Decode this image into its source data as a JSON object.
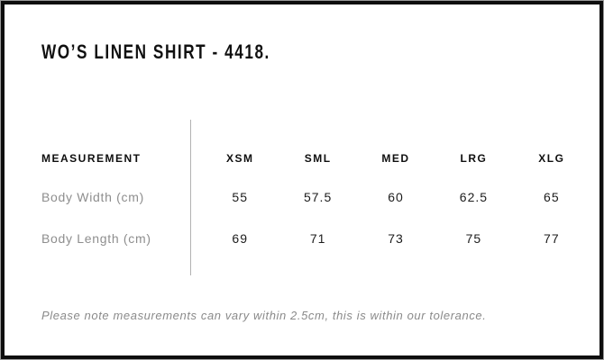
{
  "title": "WO’S LINEN SHIRT - 4418.",
  "table": {
    "header_label": "MEASUREMENT",
    "columns": [
      "XSM",
      "SML",
      "MED",
      "LRG",
      "XLG"
    ],
    "rows": [
      {
        "label": "Body Width (cm)",
        "values": [
          "55",
          "57.5",
          "60",
          "62.5",
          "65"
        ]
      },
      {
        "label": "Body Length (cm)",
        "values": [
          "69",
          "71",
          "73",
          "75",
          "77"
        ]
      }
    ]
  },
  "note": "Please note measurements can vary within 2.5cm, this is within our tolerance.",
  "colors": {
    "border": "#0e0e0e",
    "outer_edge": "#9a9a9a",
    "heading_text": "#101010",
    "value_text": "#1c1c1c",
    "muted_text": "#8e8e8e",
    "divider": "#b2b2b2",
    "background": "#ffffff"
  },
  "chart_data": {
    "type": "table",
    "title": "WO’S LINEN SHIRT - 4418.",
    "columns": [
      "MEASUREMENT",
      "XSM",
      "SML",
      "MED",
      "LRG",
      "XLG"
    ],
    "rows": [
      [
        "Body Width (cm)",
        55,
        57.5,
        60,
        62.5,
        65
      ],
      [
        "Body Length (cm)",
        69,
        71,
        73,
        75,
        77
      ]
    ],
    "note": "Please note measurements can vary within 2.5cm, this is within our tolerance."
  }
}
